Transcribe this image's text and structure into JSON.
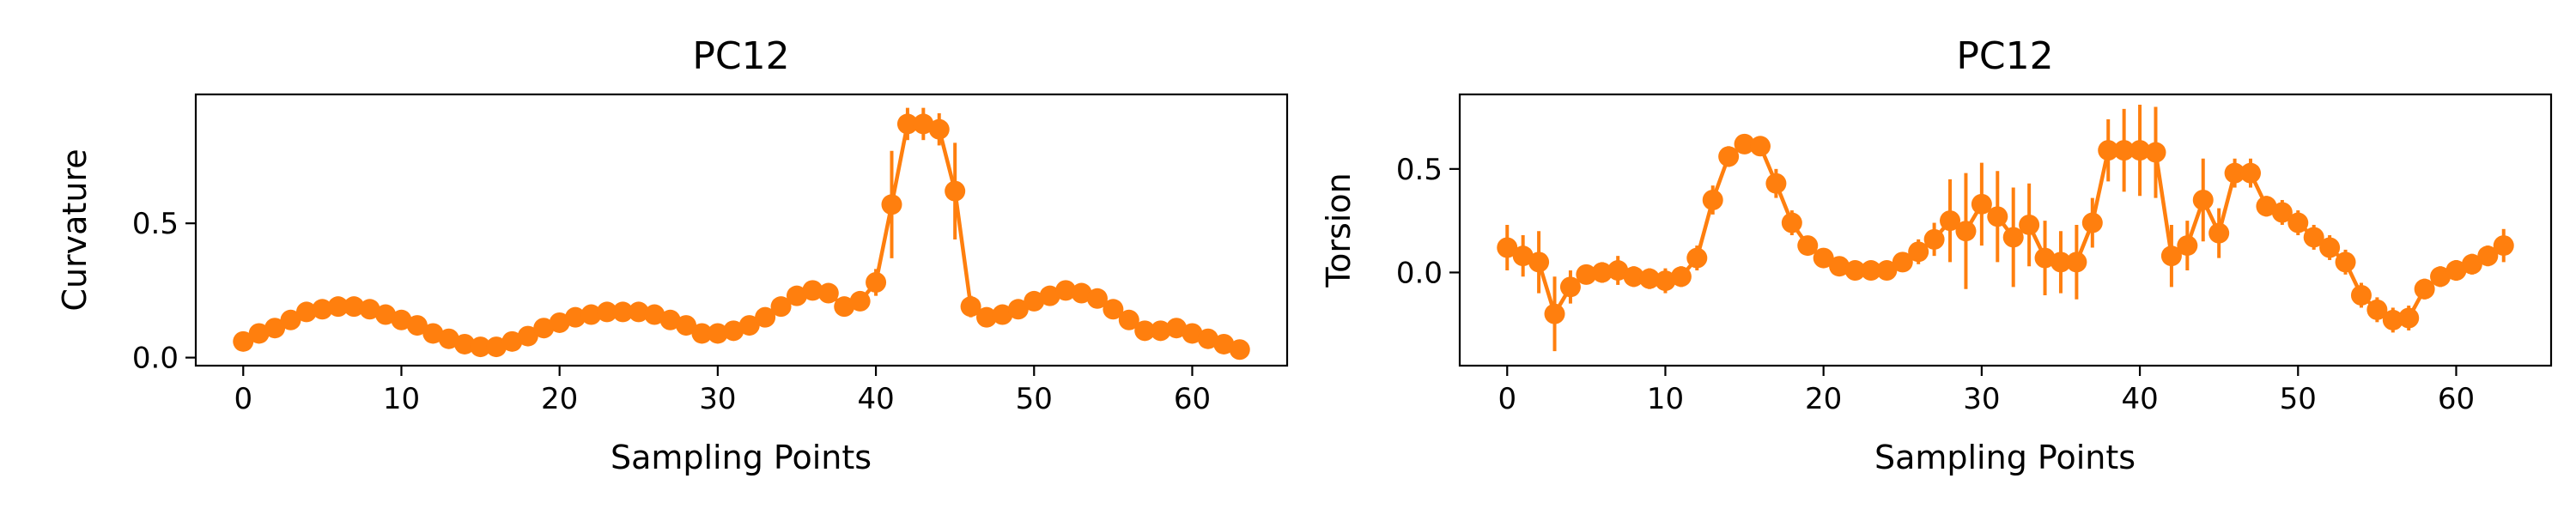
{
  "chart_data": [
    {
      "type": "line",
      "title": "PC12",
      "xlabel": "Sampling Points",
      "ylabel": "Curvature",
      "xlim": [
        -3,
        66
      ],
      "ylim": [
        -0.03,
        0.98
      ],
      "xticks": [
        0,
        10,
        20,
        30,
        40,
        50,
        60
      ],
      "yticks": [
        0.0,
        0.5
      ],
      "ytick_labels": [
        "0.0",
        "0.5"
      ],
      "grid": false,
      "color": "#ff7f0e",
      "series": [
        {
          "x": [
            0,
            1,
            2,
            3,
            4,
            5,
            6,
            7,
            8,
            9,
            10,
            11,
            12,
            13,
            14,
            15,
            16,
            17,
            18,
            19,
            20,
            21,
            22,
            23,
            24,
            25,
            26,
            27,
            28,
            29,
            30,
            31,
            32,
            33,
            34,
            35,
            36,
            37,
            38,
            39,
            40,
            41,
            42,
            43,
            44,
            45,
            46,
            47,
            48,
            49,
            50,
            51,
            52,
            53,
            54,
            55,
            56,
            57,
            58,
            59,
            60,
            61,
            62,
            63
          ],
          "y": [
            0.06,
            0.09,
            0.11,
            0.14,
            0.17,
            0.18,
            0.19,
            0.19,
            0.18,
            0.16,
            0.14,
            0.12,
            0.09,
            0.07,
            0.05,
            0.04,
            0.04,
            0.06,
            0.08,
            0.11,
            0.13,
            0.15,
            0.16,
            0.17,
            0.17,
            0.17,
            0.16,
            0.14,
            0.12,
            0.09,
            0.09,
            0.1,
            0.12,
            0.15,
            0.19,
            0.23,
            0.25,
            0.24,
            0.19,
            0.21,
            0.28,
            0.57,
            0.87,
            0.87,
            0.85,
            0.62,
            0.19,
            0.15,
            0.16,
            0.18,
            0.21,
            0.23,
            0.25,
            0.24,
            0.22,
            0.18,
            0.14,
            0.1,
            0.1,
            0.11,
            0.09,
            0.07,
            0.05,
            0.03
          ],
          "err": [
            0.02,
            0.01,
            0.01,
            0.01,
            0.01,
            0.01,
            0.01,
            0.01,
            0.01,
            0.01,
            0.01,
            0.01,
            0.01,
            0.01,
            0.01,
            0.01,
            0.01,
            0.01,
            0.01,
            0.01,
            0.01,
            0.01,
            0.01,
            0.01,
            0.01,
            0.01,
            0.01,
            0.01,
            0.01,
            0.01,
            0.01,
            0.01,
            0.01,
            0.01,
            0.01,
            0.02,
            0.02,
            0.02,
            0.02,
            0.03,
            0.05,
            0.2,
            0.06,
            0.06,
            0.06,
            0.18,
            0.04,
            0.02,
            0.02,
            0.01,
            0.02,
            0.02,
            0.02,
            0.02,
            0.02,
            0.02,
            0.02,
            0.01,
            0.01,
            0.02,
            0.02,
            0.02,
            0.01,
            0.01
          ]
        }
      ]
    },
    {
      "type": "line",
      "title": "PC12",
      "xlabel": "Sampling Points",
      "ylabel": "Torsion",
      "xlim": [
        -3,
        66
      ],
      "ylim": [
        -0.45,
        0.86
      ],
      "xticks": [
        0,
        10,
        20,
        30,
        40,
        50,
        60
      ],
      "yticks": [
        0.0,
        0.5
      ],
      "ytick_labels": [
        "0.0",
        "0.5"
      ],
      "grid": false,
      "color": "#ff7f0e",
      "series": [
        {
          "x": [
            0,
            1,
            2,
            3,
            4,
            5,
            6,
            7,
            8,
            9,
            10,
            11,
            12,
            13,
            14,
            15,
            16,
            17,
            18,
            19,
            20,
            21,
            22,
            23,
            24,
            25,
            26,
            27,
            28,
            29,
            30,
            31,
            32,
            33,
            34,
            35,
            36,
            37,
            38,
            39,
            40,
            41,
            42,
            43,
            44,
            45,
            46,
            47,
            48,
            49,
            50,
            51,
            52,
            53,
            54,
            55,
            56,
            57,
            58,
            59,
            60,
            61,
            62,
            63
          ],
          "y": [
            0.12,
            0.08,
            0.05,
            -0.2,
            -0.07,
            -0.01,
            0.0,
            0.01,
            -0.02,
            -0.03,
            -0.04,
            -0.02,
            0.07,
            0.35,
            0.56,
            0.62,
            0.61,
            0.43,
            0.24,
            0.13,
            0.07,
            0.03,
            0.01,
            0.01,
            0.01,
            0.05,
            0.1,
            0.16,
            0.25,
            0.2,
            0.33,
            0.27,
            0.17,
            0.23,
            0.07,
            0.05,
            0.05,
            0.24,
            0.59,
            0.59,
            0.59,
            0.58,
            0.08,
            0.13,
            0.35,
            0.19,
            0.48,
            0.48,
            0.32,
            0.29,
            0.24,
            0.17,
            0.12,
            0.05,
            -0.11,
            -0.18,
            -0.23,
            -0.22,
            -0.08,
            -0.02,
            0.01,
            0.04,
            0.08,
            0.13
          ],
          "err": [
            0.11,
            0.1,
            0.15,
            0.18,
            0.08,
            0.04,
            0.05,
            0.07,
            0.05,
            0.05,
            0.06,
            0.05,
            0.06,
            0.07,
            0.05,
            0.04,
            0.04,
            0.07,
            0.06,
            0.04,
            0.04,
            0.03,
            0.03,
            0.03,
            0.03,
            0.04,
            0.06,
            0.08,
            0.2,
            0.28,
            0.2,
            0.22,
            0.24,
            0.2,
            0.18,
            0.15,
            0.18,
            0.12,
            0.15,
            0.2,
            0.22,
            0.22,
            0.15,
            0.12,
            0.2,
            0.12,
            0.07,
            0.07,
            0.05,
            0.06,
            0.06,
            0.06,
            0.06,
            0.06,
            0.06,
            0.06,
            0.06,
            0.06,
            0.05,
            0.05,
            0.05,
            0.05,
            0.05,
            0.08
          ]
        }
      ]
    }
  ]
}
